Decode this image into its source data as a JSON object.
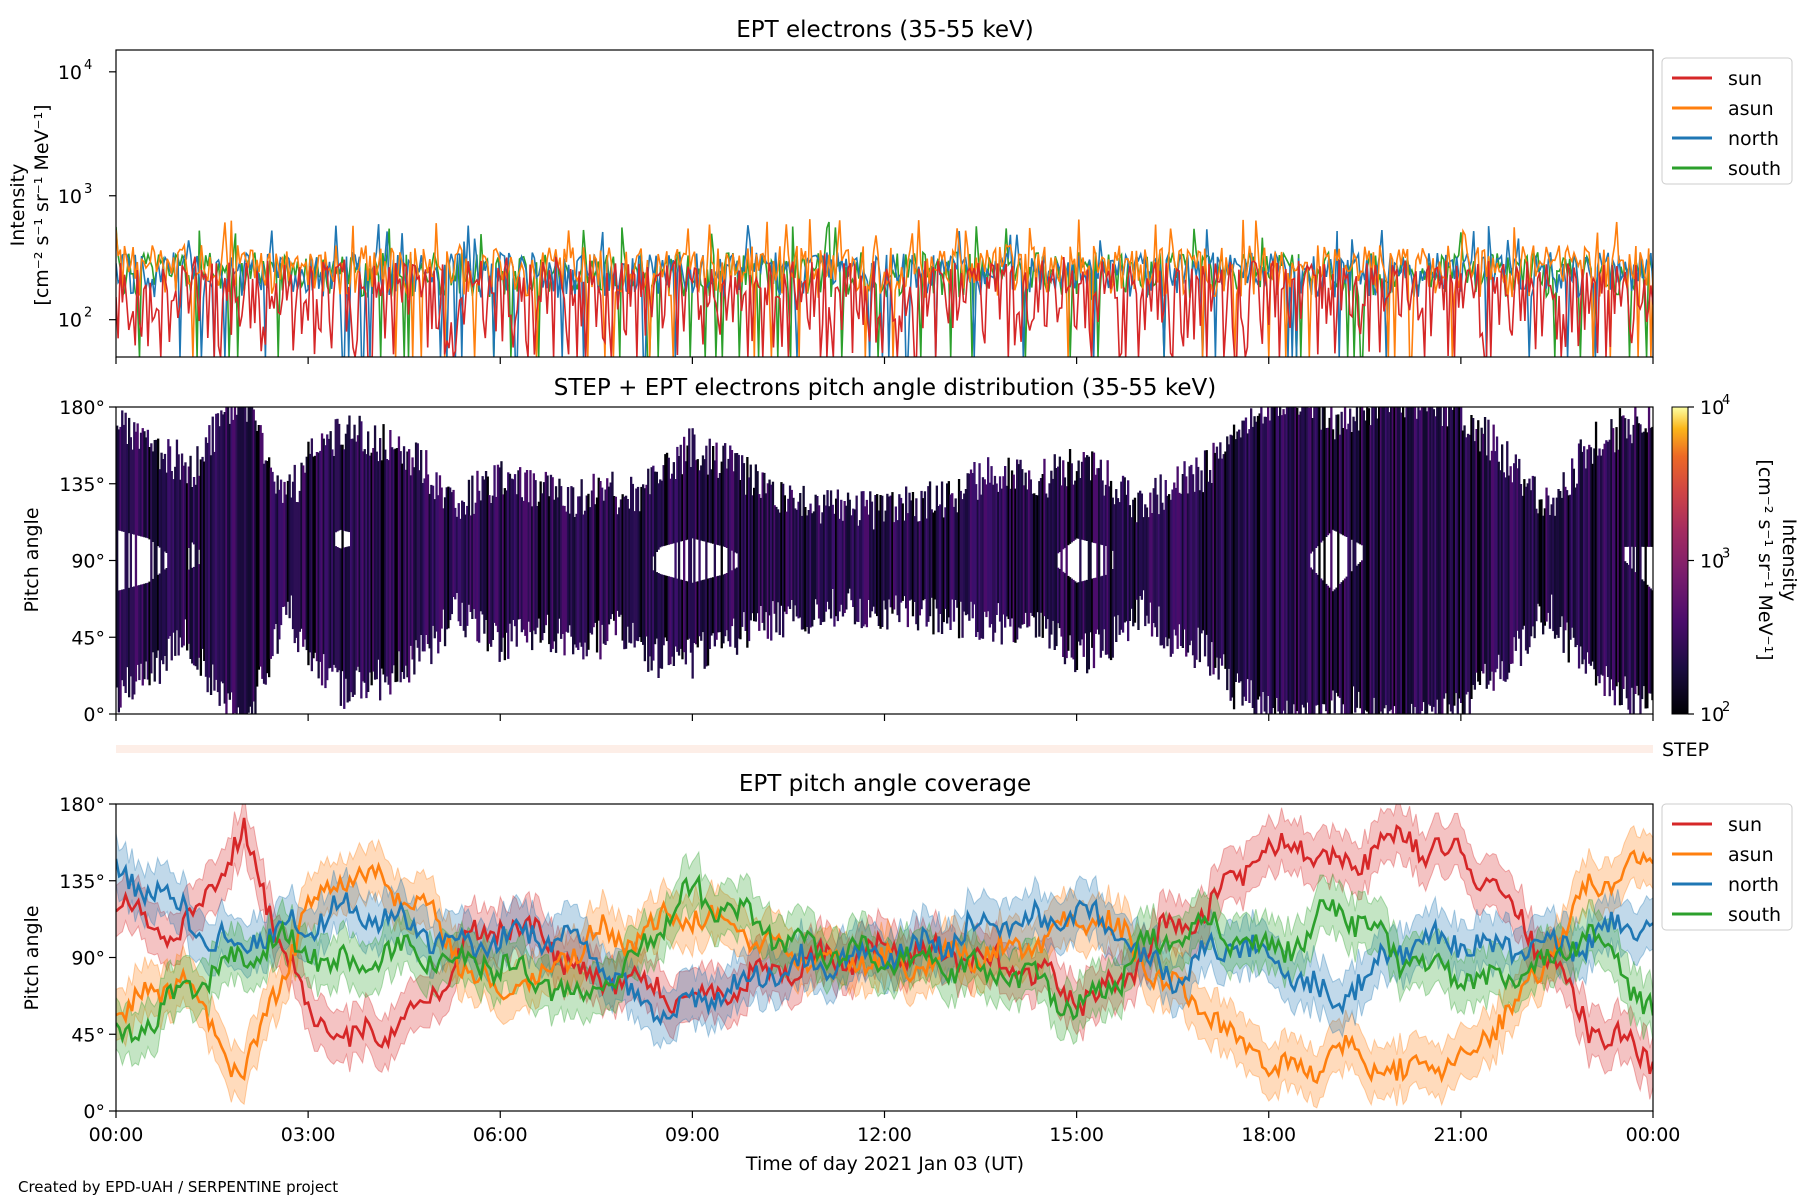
{
  "chart_data": [
    {
      "type": "line",
      "title": "EPT electrons (35-55 keV)",
      "ylabel": "Intensity",
      "ylabel_units": "[cm⁻² s⁻¹ sr⁻¹ MeV⁻¹]",
      "yscale": "log",
      "ylim": [
        50,
        15000
      ],
      "yticks": [
        "10^2",
        "10^3",
        "10^4"
      ],
      "legend_position": "outside-top-right",
      "series_sampling": "approximate statistics; the series fluctuate rapidly at every time step",
      "series": [
        {
          "name": "sun",
          "color": "#d62728",
          "typical_range": [
            50,
            300
          ],
          "typical_peak": 350
        },
        {
          "name": "asun",
          "color": "#ff7f0e",
          "typical_range": [
            150,
            400
          ],
          "typical_peak": 650
        },
        {
          "name": "north",
          "color": "#1f77b4",
          "typical_range": [
            150,
            350
          ],
          "typical_peak": 600
        },
        {
          "name": "south",
          "color": "#2ca02c",
          "typical_range": [
            150,
            350
          ],
          "typical_peak": 650
        }
      ]
    },
    {
      "type": "heatmap",
      "title": "STEP + EPT electrons pitch angle distribution (35-55 keV)",
      "ylabel": "Pitch angle",
      "ylim": [
        0,
        180
      ],
      "yticks": [
        "0°",
        "45°",
        "90°",
        "135°",
        "180°"
      ],
      "colorbar_label": "Intensity",
      "colorbar_units": "[cm⁻² s⁻¹ sr⁻¹ MeV⁻¹]",
      "colorbar_scale": "log",
      "colorbar_range": [
        100,
        10000
      ],
      "colorbar_ticks": [
        "10^2",
        "10^3",
        "10^4"
      ],
      "colormap": "inferno",
      "note": "Hatched pitch-angle bands follow the EPT coverage curves; values near 10^2 (dark purple)"
    },
    {
      "type": "bar",
      "label": "STEP",
      "color": "#fdeee7"
    },
    {
      "type": "line",
      "title": "EPT pitch angle coverage",
      "ylabel": "Pitch angle",
      "xlabel": "Time of day 2021 Jan 03 (UT)",
      "ylim": [
        0,
        180
      ],
      "yticks": [
        "0°",
        "45°",
        "90°",
        "135°",
        "180°"
      ],
      "xticks": [
        "00:00",
        "03:00",
        "06:00",
        "09:00",
        "12:00",
        "15:00",
        "18:00",
        "21:00",
        "00:00"
      ],
      "x": [
        0,
        0.5,
        1,
        1.5,
        2,
        2.5,
        3,
        3.5,
        4,
        4.5,
        5,
        5.5,
        6,
        6.5,
        7,
        7.5,
        8,
        8.5,
        9,
        9.5,
        10,
        10.5,
        11,
        11.5,
        12,
        12.5,
        13,
        13.5,
        14,
        14.5,
        15,
        15.5,
        16,
        16.5,
        17,
        17.5,
        18,
        18.5,
        19,
        19.5,
        20,
        20.5,
        21,
        21.5,
        22,
        22.5,
        23,
        23.5,
        24
      ],
      "x_units": "hours",
      "shaded_band_halfwidth_deg": 15,
      "legend_position": "outside-top-right",
      "series": [
        {
          "name": "sun",
          "color": "#d62728",
          "values": [
            120,
            115,
            100,
            135,
            160,
            110,
            60,
            40,
            45,
            55,
            70,
            100,
            110,
            105,
            90,
            75,
            80,
            70,
            65,
            70,
            80,
            85,
            88,
            90,
            92,
            95,
            90,
            88,
            85,
            80,
            65,
            70,
            90,
            110,
            115,
            140,
            150,
            160,
            145,
            150,
            160,
            155,
            150,
            130,
            110,
            80,
            50,
            40,
            30
          ]
        },
        {
          "name": "asun",
          "color": "#ff7f0e",
          "values": [
            60,
            65,
            80,
            45,
            20,
            70,
            120,
            140,
            135,
            125,
            110,
            80,
            70,
            75,
            90,
            105,
            100,
            110,
            115,
            110,
            100,
            95,
            92,
            90,
            88,
            85,
            90,
            92,
            95,
            100,
            115,
            110,
            90,
            70,
            65,
            40,
            30,
            20,
            35,
            30,
            20,
            25,
            30,
            50,
            70,
            100,
            130,
            140,
            150
          ]
        },
        {
          "name": "north",
          "color": "#1f77b4",
          "values": [
            140,
            130,
            120,
            100,
            100,
            105,
            110,
            120,
            115,
            110,
            100,
            95,
            100,
            105,
            100,
            90,
            70,
            60,
            60,
            70,
            80,
            85,
            88,
            90,
            92,
            95,
            100,
            110,
            115,
            110,
            120,
            110,
            90,
            80,
            90,
            100,
            90,
            80,
            60,
            80,
            95,
            100,
            100,
            95,
            95,
            95,
            100,
            110,
            110
          ]
        },
        {
          "name": "south",
          "color": "#2ca02c",
          "values": [
            40,
            50,
            70,
            80,
            90,
            100,
            95,
            85,
            90,
            95,
            90,
            90,
            85,
            80,
            70,
            70,
            85,
            110,
            130,
            120,
            110,
            100,
            95,
            92,
            90,
            88,
            85,
            82,
            80,
            75,
            60,
            70,
            95,
            100,
            110,
            100,
            95,
            100,
            120,
            110,
            90,
            85,
            80,
            75,
            80,
            90,
            110,
            80,
            60
          ]
        }
      ]
    }
  ],
  "footer": "Created by EPD-UAH / SERPENTINE project"
}
